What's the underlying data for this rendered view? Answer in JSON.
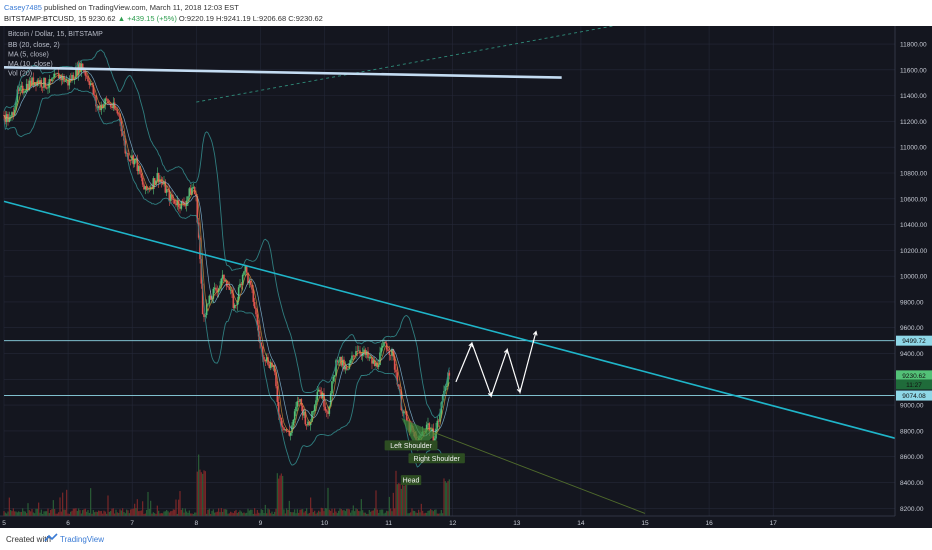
{
  "header": {
    "author": "Casey7485",
    "published_text": "published on TradingView.com, March 11, 2018 12:03 EST",
    "symbol_line": "BITSTAMP:BTCUSD, 15",
    "last_price": "9230.62",
    "change": "▲ +439.15 (+5%)",
    "open": "O:9220.19",
    "high": "H:9241.19",
    "low": "L:9206.68",
    "close": "C:9230.62"
  },
  "footer": {
    "created_with": "Created with",
    "brand": "TradingView"
  },
  "colors": {
    "background": "#14161f",
    "grid": "#242838",
    "candle_up": "#53c177",
    "candle_down": "#e0554f",
    "bollinger": "#2f7d7f",
    "ma5": "#e09a3a",
    "ma10": "#8cc7e6",
    "trendline": "#1fb5c9",
    "top_line": "#c4dcf2",
    "sr_line": "#8fd8e8",
    "triangle": "#3f8a3a",
    "projection": "#ffffff",
    "volume_down": "#8c2a2a",
    "volume_up": "#2d6a39"
  },
  "chart_data": {
    "type": "candlestick",
    "title": "Bitcoin / Dollar, 15, BITSTAMP",
    "indicators": [
      "BB (20, close, 2)",
      "MA (5, close)",
      "MA (10, close)",
      "Vol (20)"
    ],
    "x_ticks": [
      "5",
      "6",
      "7",
      "8",
      "9",
      "10",
      "11",
      "12",
      "13",
      "14",
      "15",
      "16",
      "17"
    ],
    "x_range": [
      5,
      18.9
    ],
    "y_ticks": [
      8200,
      8400,
      8600,
      8800,
      9000,
      9200,
      9400,
      9600,
      9800,
      10000,
      10200,
      10400,
      10600,
      10800,
      11000,
      11200,
      11400,
      11600,
      11800
    ],
    "y_tick_labels": [
      "8200.00",
      "8400.00",
      "8600.00",
      "8800.00",
      "9000.00",
      "9200.00",
      "9400.00",
      "9600.00",
      "9800.00",
      "10000.00",
      "10200.00",
      "10400.00",
      "10600.00",
      "10800.00",
      "11000.00",
      "11200.00",
      "11400.00",
      "11600.00",
      "11800.00"
    ],
    "y_range": [
      8140,
      11940
    ],
    "price_path": [
      [
        5.0,
        11250
      ],
      [
        5.1,
        11200
      ],
      [
        5.2,
        11400
      ],
      [
        5.35,
        11480
      ],
      [
        5.5,
        11520
      ],
      [
        5.7,
        11480
      ],
      [
        5.85,
        11560
      ],
      [
        6.0,
        11500
      ],
      [
        6.2,
        11640
      ],
      [
        6.35,
        11500
      ],
      [
        6.45,
        11300
      ],
      [
        6.6,
        11360
      ],
      [
        6.8,
        11250
      ],
      [
        6.9,
        10950
      ],
      [
        7.05,
        10900
      ],
      [
        7.2,
        10650
      ],
      [
        7.4,
        10780
      ],
      [
        7.6,
        10600
      ],
      [
        7.8,
        10550
      ],
      [
        7.95,
        10700
      ],
      [
        8.0,
        10580
      ],
      [
        8.05,
        10200
      ],
      [
        8.1,
        9700
      ],
      [
        8.25,
        9850
      ],
      [
        8.45,
        10000
      ],
      [
        8.6,
        9750
      ],
      [
        8.75,
        10080
      ],
      [
        8.9,
        9800
      ],
      [
        9.0,
        9450
      ],
      [
        9.1,
        9350
      ],
      [
        9.2,
        9300
      ],
      [
        9.3,
        8900
      ],
      [
        9.45,
        8760
      ],
      [
        9.6,
        9050
      ],
      [
        9.75,
        8820
      ],
      [
        9.9,
        9150
      ],
      [
        10.05,
        8950
      ],
      [
        10.2,
        9380
      ],
      [
        10.35,
        9250
      ],
      [
        10.5,
        9450
      ],
      [
        10.65,
        9380
      ],
      [
        10.8,
        9300
      ],
      [
        10.95,
        9480
      ],
      [
        11.05,
        9400
      ],
      [
        11.12,
        9250
      ],
      [
        11.2,
        9000
      ],
      [
        11.3,
        8850
      ],
      [
        11.45,
        8700
      ],
      [
        11.6,
        8860
      ],
      [
        11.7,
        8750
      ],
      [
        11.8,
        8920
      ],
      [
        11.87,
        9150
      ],
      [
        11.95,
        9230
      ]
    ],
    "series": [
      {
        "name": "BB (20, close, 2)"
      },
      {
        "name": "MA (5, close)"
      },
      {
        "name": "MA (10, close)"
      },
      {
        "name": "Vol (20)"
      }
    ],
    "horizontal_levels": [
      {
        "value": 9499.72,
        "label": "9499.72"
      },
      {
        "value": 9074.08,
        "label": "9074.08"
      }
    ],
    "price_tags": [
      {
        "value": 9230.62,
        "label": "9230.62"
      },
      {
        "value": 9160,
        "label": "11:27"
      }
    ],
    "trendlines": [
      {
        "name": "descending-trendline",
        "points": [
          [
            5.0,
            10580
          ],
          [
            19.0,
            8730
          ]
        ]
      },
      {
        "name": "top-resistance",
        "points": [
          [
            5.0,
            11620
          ],
          [
            13.7,
            11540
          ]
        ]
      },
      {
        "name": "dashed-channel",
        "points": [
          [
            8.0,
            11350
          ],
          [
            14.5,
            11940
          ]
        ]
      },
      {
        "name": "neckline-projection",
        "points": [
          [
            11.75,
            8780
          ],
          [
            15.0,
            8160
          ]
        ]
      }
    ],
    "projection_path": [
      [
        12.05,
        9180
      ],
      [
        12.3,
        9480
      ],
      [
        12.6,
        9070
      ],
      [
        12.85,
        9430
      ],
      [
        13.05,
        9100
      ],
      [
        13.3,
        9570
      ]
    ],
    "annotations": [
      {
        "text": "Left Shoulder",
        "x": 11.35,
        "y": 8680
      },
      {
        "text": "Right Shoulder",
        "x": 11.75,
        "y": 8580
      },
      {
        "text": "Head",
        "x": 11.35,
        "y": 8410
      }
    ]
  }
}
